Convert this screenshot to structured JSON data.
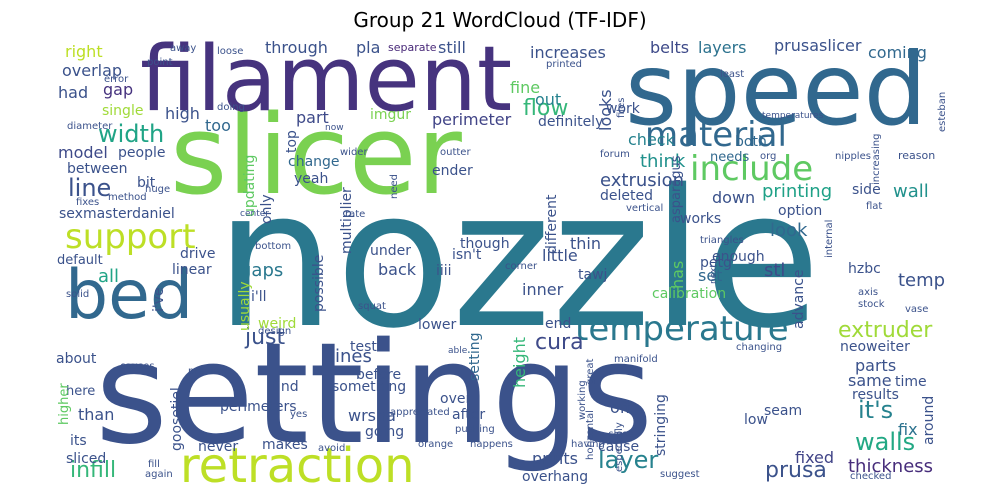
{
  "title": "Group 21 WordCloud (TF-IDF)",
  "words": [
    {
      "text": "nozzle",
      "color": "#2a788e"
    },
    {
      "text": "settings",
      "color": "#3b528b"
    },
    {
      "text": "slicer",
      "color": "#7ad151"
    },
    {
      "text": "speed",
      "color": "#31688e"
    },
    {
      "text": "filament",
      "color": "#46337e"
    },
    {
      "text": "bed",
      "color": "#31688e"
    },
    {
      "text": "retraction",
      "color": "#bddf26"
    },
    {
      "text": "temperature",
      "color": "#2a788e"
    },
    {
      "text": "material",
      "color": "#31688e"
    },
    {
      "text": "include",
      "color": "#5ec962"
    },
    {
      "text": "support",
      "color": "#bddf26"
    },
    {
      "text": "width",
      "color": "#20a486"
    },
    {
      "text": "line",
      "color": "#3b528b"
    },
    {
      "text": "layer",
      "color": "#26828e"
    },
    {
      "text": "walls",
      "color": "#22a884"
    },
    {
      "text": "it's",
      "color": "#26828e"
    },
    {
      "text": "just",
      "color": "#3b528b"
    },
    {
      "text": "extruder",
      "color": "#a0da39"
    },
    {
      "text": "cura",
      "color": "#3e4a89"
    },
    {
      "text": "prusa",
      "color": "#3b528b"
    },
    {
      "text": "flow",
      "color": "#35b779"
    },
    {
      "text": "infill",
      "color": "#35b779"
    },
    {
      "text": "thickness",
      "color": "#472d7b"
    },
    {
      "text": "lines",
      "color": "#3b528b"
    },
    {
      "text": "gaps",
      "color": "#2a788e"
    },
    {
      "text": "extrusion",
      "color": "#3b528b"
    },
    {
      "text": "think",
      "color": "#21918c"
    },
    {
      "text": "look",
      "color": "#31688e"
    },
    {
      "text": "printing",
      "color": "#1fa187"
    },
    {
      "text": "wall",
      "color": "#21918c"
    },
    {
      "text": "stl",
      "color": "#3e4a89"
    },
    {
      "text": "temp",
      "color": "#3b528b"
    },
    {
      "text": "fixed",
      "color": "#414487"
    },
    {
      "text": "fix",
      "color": "#2c728e"
    },
    {
      "text": "all",
      "color": "#20a486"
    },
    {
      "text": "perimeter",
      "color": "#414487"
    },
    {
      "text": "model",
      "color": "#3e4a89"
    },
    {
      "text": "layers",
      "color": "#2c728e"
    },
    {
      "text": "increases",
      "color": "#3b528b"
    },
    {
      "text": "belts",
      "color": "#3e4a89"
    },
    {
      "text": "prusaslicer",
      "color": "#3b528b"
    },
    {
      "text": "coming",
      "color": "#31688e"
    },
    {
      "text": "right",
      "color": "#bddf26"
    },
    {
      "text": "gap",
      "color": "#46327e"
    },
    {
      "text": "overlap",
      "color": "#3b528b"
    },
    {
      "text": "had",
      "color": "#3b528b"
    },
    {
      "text": "through",
      "color": "#3b528b"
    },
    {
      "text": "pla",
      "color": "#3b528b"
    },
    {
      "text": "separate",
      "color": "#482878"
    },
    {
      "text": "still",
      "color": "#3b528b"
    },
    {
      "text": "looks",
      "color": "#3b528b"
    },
    {
      "text": "fine",
      "color": "#5ec962"
    },
    {
      "text": "out",
      "color": "#26828e"
    },
    {
      "text": "too",
      "color": "#31688e"
    },
    {
      "text": "high",
      "color": "#3b528b"
    },
    {
      "text": "part",
      "color": "#3e4a89"
    },
    {
      "text": "top",
      "color": "#3b528b"
    },
    {
      "text": "imgur",
      "color": "#7ad151"
    },
    {
      "text": "definitely",
      "color": "#3b528b"
    },
    {
      "text": "work",
      "color": "#3b528b"
    },
    {
      "text": "check",
      "color": "#26828e"
    },
    {
      "text": "both",
      "color": "#31688e"
    },
    {
      "text": "needs",
      "color": "#31688e"
    },
    {
      "text": "between",
      "color": "#3b528b"
    },
    {
      "text": "bit",
      "color": "#3b528b"
    },
    {
      "text": "people",
      "color": "#3b528b"
    },
    {
      "text": "single",
      "color": "#a0da39"
    },
    {
      "text": "drive",
      "color": "#3b528b"
    },
    {
      "text": "linear",
      "color": "#3b528b"
    },
    {
      "text": "default",
      "color": "#3b528b"
    },
    {
      "text": "i've",
      "color": "#3b528b"
    },
    {
      "text": "i'll",
      "color": "#3b528b"
    },
    {
      "text": "sexmasterdaniel",
      "color": "#3b528b"
    },
    {
      "text": "updating",
      "color": "#5ec962"
    },
    {
      "text": "change",
      "color": "#31688e"
    },
    {
      "text": "yeah",
      "color": "#3b528b"
    },
    {
      "text": "only",
      "color": "#3b528b"
    },
    {
      "text": "multiplier",
      "color": "#3b528b"
    },
    {
      "text": "ender",
      "color": "#3b528b"
    },
    {
      "text": "deleted",
      "color": "#3b528b"
    },
    {
      "text": "different",
      "color": "#3b528b"
    },
    {
      "text": "down",
      "color": "#3b528b"
    },
    {
      "text": "side",
      "color": "#3b528b"
    },
    {
      "text": "option",
      "color": "#3b528b"
    },
    {
      "text": "works",
      "color": "#3b528b"
    },
    {
      "text": "petg",
      "color": "#3b528b"
    },
    {
      "text": "enough",
      "color": "#3b528b"
    },
    {
      "text": "has",
      "color": "#5ec962"
    },
    {
      "text": "set",
      "color": "#31688e"
    },
    {
      "text": "advance",
      "color": "#3b528b"
    },
    {
      "text": "hzbc",
      "color": "#3b528b"
    },
    {
      "text": "thin",
      "color": "#3b528b"
    },
    {
      "text": "though",
      "color": "#3b528b"
    },
    {
      "text": "isn't",
      "color": "#3b528b"
    },
    {
      "text": "little",
      "color": "#3b528b"
    },
    {
      "text": "tawj",
      "color": "#3b528b"
    },
    {
      "text": "iiii",
      "color": "#3b528b"
    },
    {
      "text": "under",
      "color": "#3b528b"
    },
    {
      "text": "back",
      "color": "#3b528b"
    },
    {
      "text": "inner",
      "color": "#3b528b"
    },
    {
      "text": "calibration",
      "color": "#5ec962"
    },
    {
      "text": "possible",
      "color": "#3b528b"
    },
    {
      "text": "weird",
      "color": "#a0da39"
    },
    {
      "text": "usually",
      "color": "#a0da39"
    },
    {
      "text": "test",
      "color": "#3b528b"
    },
    {
      "text": "lower",
      "color": "#3b528b"
    },
    {
      "text": "setting",
      "color": "#31688e"
    },
    {
      "text": "end",
      "color": "#3b528b"
    },
    {
      "text": "height",
      "color": "#35b779"
    },
    {
      "text": "parts",
      "color": "#3b528b"
    },
    {
      "text": "neoweiter",
      "color": "#3b528b"
    },
    {
      "text": "same",
      "color": "#3b528b"
    },
    {
      "text": "time",
      "color": "#3b528b"
    },
    {
      "text": "results",
      "color": "#3b528b"
    },
    {
      "text": "around",
      "color": "#3b528b"
    },
    {
      "text": "about",
      "color": "#3b528b"
    },
    {
      "text": "here",
      "color": "#3b528b"
    },
    {
      "text": "higher",
      "color": "#5ec962"
    },
    {
      "text": "than",
      "color": "#3b528b"
    },
    {
      "text": "its",
      "color": "#3b528b"
    },
    {
      "text": "sliced",
      "color": "#3b528b"
    },
    {
      "text": "goosetiel",
      "color": "#3b528b"
    },
    {
      "text": "find",
      "color": "#3b528b"
    },
    {
      "text": "perimeters",
      "color": "#3b528b"
    },
    {
      "text": "makes",
      "color": "#3b528b"
    },
    {
      "text": "never",
      "color": "#3b528b"
    },
    {
      "text": "something",
      "color": "#3b528b"
    },
    {
      "text": "wrsha",
      "color": "#3b528b"
    },
    {
      "text": "going",
      "color": "#3b528b"
    },
    {
      "text": "before",
      "color": "#3b528b"
    },
    {
      "text": "over",
      "color": "#3b528b"
    },
    {
      "text": "after",
      "color": "#3b528b"
    },
    {
      "text": "stringing",
      "color": "#3b528b"
    },
    {
      "text": "off",
      "color": "#3b528b"
    },
    {
      "text": "cause",
      "color": "#3b528b"
    },
    {
      "text": "prints",
      "color": "#3b528b"
    },
    {
      "text": "overhang",
      "color": "#3b528b"
    },
    {
      "text": "seam",
      "color": "#3b528b"
    },
    {
      "text": "low",
      "color": "#3b528b"
    },
    {
      "text": "asparagus",
      "color": "#3b528b"
    },
    {
      "text": "files",
      "color": "#3b528b"
    },
    {
      "text": "least",
      "color": "#3b528b"
    },
    {
      "text": "temperatures",
      "color": "#3b528b"
    },
    {
      "text": "increasing",
      "color": "#3b528b"
    },
    {
      "text": "esteban",
      "color": "#3b528b"
    },
    {
      "text": "nipples",
      "color": "#3b528b"
    },
    {
      "text": "reason",
      "color": "#3b528b"
    },
    {
      "text": "forum",
      "color": "#3b528b"
    },
    {
      "text": "org",
      "color": "#3b528b"
    },
    {
      "text": "outter",
      "color": "#3b528b"
    },
    {
      "text": "wider",
      "color": "#3b528b"
    },
    {
      "text": "now",
      "color": "#3b528b"
    },
    {
      "text": "need",
      "color": "#3b528b"
    },
    {
      "text": "rate",
      "color": "#3b528b"
    },
    {
      "text": "vertical",
      "color": "#3b528b"
    },
    {
      "text": "triangles",
      "color": "#3b528b"
    },
    {
      "text": "flat",
      "color": "#3b528b"
    },
    {
      "text": "center",
      "color": "#3b528b"
    },
    {
      "text": "internal",
      "color": "#3b528b"
    },
    {
      "text": "next",
      "color": "#3b528b"
    },
    {
      "text": "corner",
      "color": "#3b528b"
    },
    {
      "text": "axis",
      "color": "#3b528b"
    },
    {
      "text": "stock",
      "color": "#3b528b"
    },
    {
      "text": "vase",
      "color": "#3b528b"
    },
    {
      "text": "design",
      "color": "#3b528b"
    },
    {
      "text": "squat",
      "color": "#3b528b"
    },
    {
      "text": "bottom",
      "color": "#3b528b"
    },
    {
      "text": "solid",
      "color": "#3b528b"
    },
    {
      "text": "diameter",
      "color": "#3b528b"
    },
    {
      "text": "huge",
      "color": "#3b528b"
    },
    {
      "text": "fixes",
      "color": "#3b528b"
    },
    {
      "text": "method",
      "color": "#3b528b"
    },
    {
      "text": "doing",
      "color": "#3b528b"
    },
    {
      "text": "error",
      "color": "#3b528b"
    },
    {
      "text": "point",
      "color": "#3b528b"
    },
    {
      "text": "loose",
      "color": "#3b528b"
    },
    {
      "text": "away",
      "color": "#3b528b"
    },
    {
      "text": "printed",
      "color": "#3b528b"
    },
    {
      "text": "causes",
      "color": "#3b528b"
    },
    {
      "text": "preview",
      "color": "#3b528b"
    },
    {
      "text": "manifold",
      "color": "#3b528b"
    },
    {
      "text": "changing",
      "color": "#3b528b"
    },
    {
      "text": "able",
      "color": "#3b528b"
    },
    {
      "text": "great",
      "color": "#3b528b"
    },
    {
      "text": "working",
      "color": "#3b528b"
    },
    {
      "text": "horizontal",
      "color": "#3b528b"
    },
    {
      "text": "especially",
      "color": "#3b528b"
    },
    {
      "text": "yes",
      "color": "#3b528b"
    },
    {
      "text": "appreciated",
      "color": "#3b528b"
    },
    {
      "text": "pushing",
      "color": "#3b528b"
    },
    {
      "text": "having",
      "color": "#3b528b"
    },
    {
      "text": "close",
      "color": "#3b528b"
    },
    {
      "text": "avoid",
      "color": "#3b528b"
    },
    {
      "text": "orange",
      "color": "#3b528b"
    },
    {
      "text": "happens",
      "color": "#3b528b"
    },
    {
      "text": "fill",
      "color": "#3b528b"
    },
    {
      "text": "again",
      "color": "#3b528b"
    },
    {
      "text": "suggest",
      "color": "#3b528b"
    },
    {
      "text": "checked",
      "color": "#3b528b"
    }
  ]
}
